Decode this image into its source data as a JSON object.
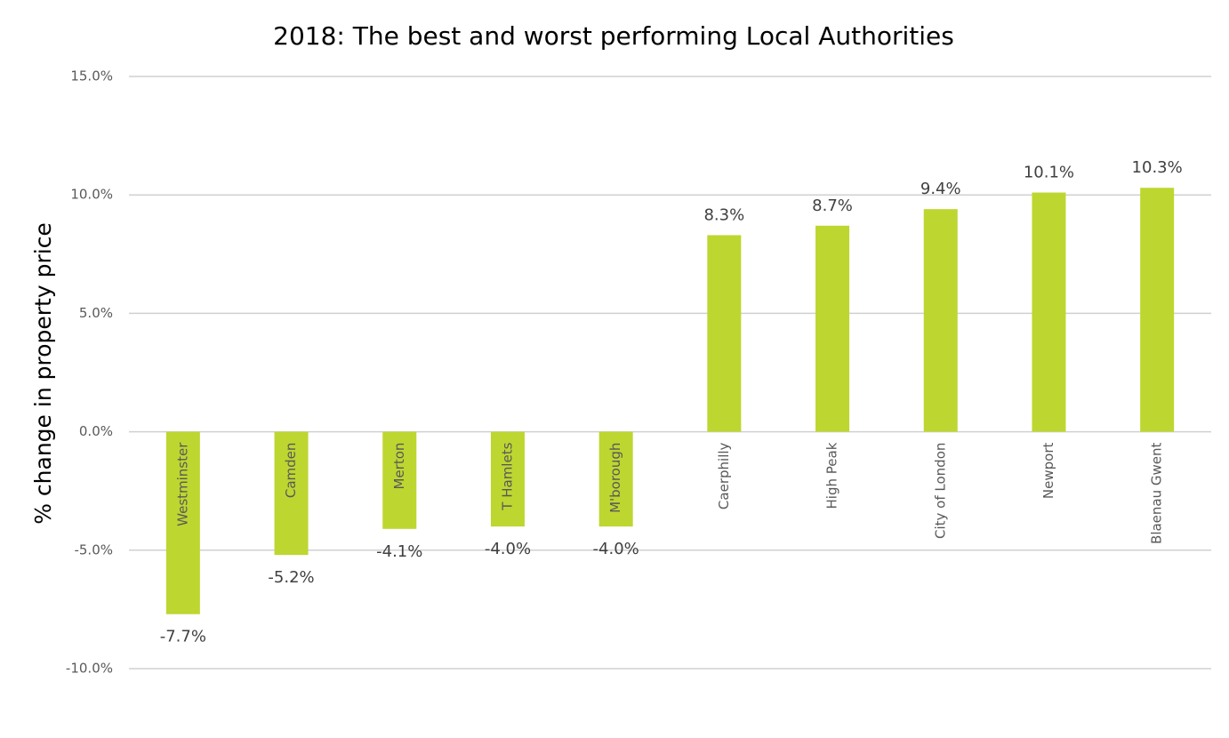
{
  "chart_data": {
    "type": "bar",
    "title": "2018: The best and worst performing Local Authorities",
    "y_label": "% change in property price",
    "categories": [
      "Westminster",
      "Camden",
      "Merton",
      "T Hamlets",
      "M'borough",
      "Caerphilly",
      "High Peak",
      "City of London",
      "Newport",
      "Blaenau Gwent"
    ],
    "values": [
      -7.7,
      -5.2,
      -4.1,
      -4.0,
      -4.0,
      8.3,
      8.7,
      9.4,
      10.1,
      10.3
    ],
    "value_labels": [
      "-7.7%",
      "-5.2%",
      "-4.1%",
      "-4.0%",
      "-4.0%",
      "8.3%",
      "8.7%",
      "9.4%",
      "10.1%",
      "10.3%"
    ],
    "color": "#bed630",
    "ylim": [
      -10,
      15
    ],
    "yticks": [
      {
        "value": -10,
        "label": "-10.0%"
      },
      {
        "value": -5,
        "label": "-5.0%"
      },
      {
        "value": 0,
        "label": "0.0%"
      },
      {
        "value": 5,
        "label": "5.0%"
      },
      {
        "value": 10,
        "label": "10.0%"
      },
      {
        "value": 15,
        "label": "15.0%"
      }
    ],
    "grid": true
  }
}
